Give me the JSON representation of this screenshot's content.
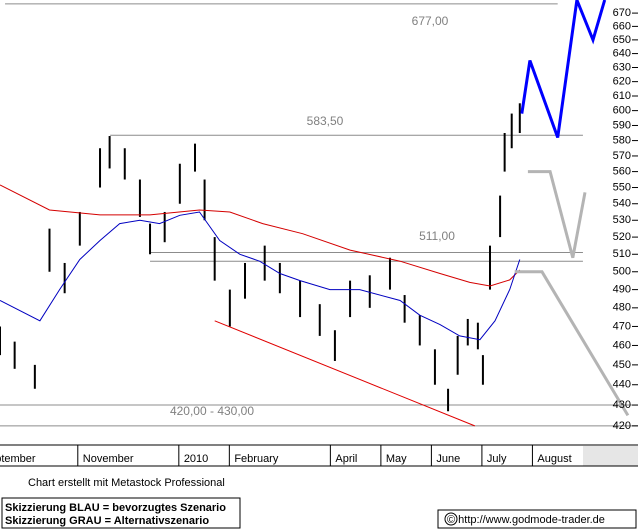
{
  "chart_data": {
    "type": "stock",
    "log": true,
    "xlim": [
      0.46,
      13.09
    ],
    "ylim": [
      411,
      680
    ],
    "xticks": [
      {
        "value": 0,
        "label": "September"
      },
      {
        "value": 2,
        "label": "November"
      },
      {
        "value": 4,
        "label": "2010"
      },
      {
        "value": 5,
        "label": "February"
      },
      {
        "value": 7,
        "label": "April"
      },
      {
        "value": 8,
        "label": "May"
      },
      {
        "value": 9,
        "label": "June"
      },
      {
        "value": 10,
        "label": "July"
      },
      {
        "value": 11,
        "label": "August"
      }
    ],
    "yticks": [
      420,
      430,
      440,
      450,
      460,
      470,
      480,
      490,
      500,
      510,
      520,
      530,
      540,
      550,
      560,
      570,
      580,
      590,
      600,
      610,
      620,
      630,
      640,
      650,
      660,
      670
    ],
    "price": {
      "color": "#000000",
      "x": [
        0.46,
        0.75,
        1.15,
        1.44,
        1.74,
        2.04,
        2.44,
        2.63,
        2.93,
        3.23,
        3.43,
        3.72,
        4.02,
        4.32,
        4.51,
        4.71,
        5.01,
        5.31,
        5.7,
        6.0,
        6.4,
        6.79,
        7.09,
        7.39,
        7.78,
        8.18,
        8.47,
        8.77,
        9.07,
        9.33,
        9.52,
        9.72,
        9.92,
        10.02,
        10.16,
        10.36,
        10.45,
        10.59,
        10.75
      ],
      "high": [
        470,
        462,
        450,
        525,
        505,
        535,
        575,
        583,
        575,
        555,
        528,
        535,
        565,
        578,
        555,
        520,
        490,
        505,
        515,
        505,
        495,
        482,
        468,
        495,
        498,
        508,
        487,
        476,
        458,
        438,
        465,
        474,
        472,
        455,
        515,
        545,
        585,
        598,
        605
      ],
      "low": [
        455,
        448,
        438,
        500,
        488,
        515,
        550,
        562,
        555,
        532,
        510,
        517,
        540,
        560,
        530,
        495,
        470,
        485,
        495,
        488,
        475,
        465,
        452,
        475,
        480,
        490,
        472,
        460,
        440,
        427,
        445,
        460,
        458,
        440,
        490,
        520,
        560,
        575,
        585
      ]
    },
    "series": [
      {
        "color": "#d40000",
        "line_width": 1,
        "x": [
          0.46,
          1.44,
          2.44,
          3.43,
          4.41,
          5.01,
          5.66,
          6.45,
          7.39,
          8.38,
          9.17,
          9.76,
          10.16,
          10.55,
          10.75
        ],
        "values": [
          551.6,
          536.2,
          533.2,
          533.2,
          536.2,
          535,
          528,
          522,
          512.4,
          506,
          499,
          494,
          492,
          495.4,
          501
        ]
      },
      {
        "color": "#0000c0",
        "line_width": 1,
        "x": [
          0.46,
          1.25,
          1.64,
          2.04,
          2.44,
          2.83,
          3.23,
          3.62,
          4.02,
          4.41,
          4.81,
          5.21,
          5.6,
          6.0,
          6.4,
          6.99,
          7.58,
          8.38,
          8.77,
          9.17,
          9.56,
          9.96,
          10.26,
          10.55,
          10.75
        ],
        "values": [
          484,
          473,
          490,
          507,
          518,
          528,
          530,
          528,
          533,
          535,
          518,
          510,
          506,
          499,
          495,
          490,
          490,
          484,
          476,
          471,
          465,
          463,
          473,
          490,
          507
        ]
      },
      {
        "color": "#0000ff",
        "line_width": 3,
        "x": [
          10.79,
          10.95,
          11.5,
          11.88,
          12.2,
          12.43
        ],
        "values": [
          598,
          635,
          582,
          680,
          650,
          680
        ]
      },
      {
        "color": "#b4b4b4",
        "line_width": 3,
        "x": [
          10.91,
          11.35,
          11.8,
          12.04,
          null,
          10.65,
          11.19,
          12.89
        ],
        "values": [
          560,
          560,
          508,
          547,
          null,
          500,
          500,
          425
        ]
      },
      {
        "color": "#e00000",
        "line_width": 1,
        "x": [
          4.71,
          9.86
        ],
        "values": [
          473,
          420
        ]
      }
    ],
    "levels": [
      {
        "values": [
          677
        ],
        "x": [
          0.56,
          11.5
        ],
        "label": "677,00"
      },
      {
        "values": [
          583.5
        ],
        "x": [
          2.64,
          12.0
        ],
        "label": "583,50"
      },
      {
        "values": [
          511
        ],
        "x": [
          3.43,
          12.0
        ],
        "label": "511,00"
      },
      {
        "values": [
          506
        ],
        "x": [
          3.43,
          12.0
        ]
      },
      {
        "values": [
          420,
          430
        ],
        "x": [
          0.46,
          13.09
        ],
        "label": "420,00 - 430,00"
      }
    ]
  },
  "footer": {
    "credit": "Chart erstellt mit Metastock Professional",
    "legend": [
      "Skizzierung BLAU = bevorzugtes Szenario",
      "Skizzierung GRAU = Alternativszenario"
    ],
    "copyright": "© http://www.godmode-trader.de"
  }
}
